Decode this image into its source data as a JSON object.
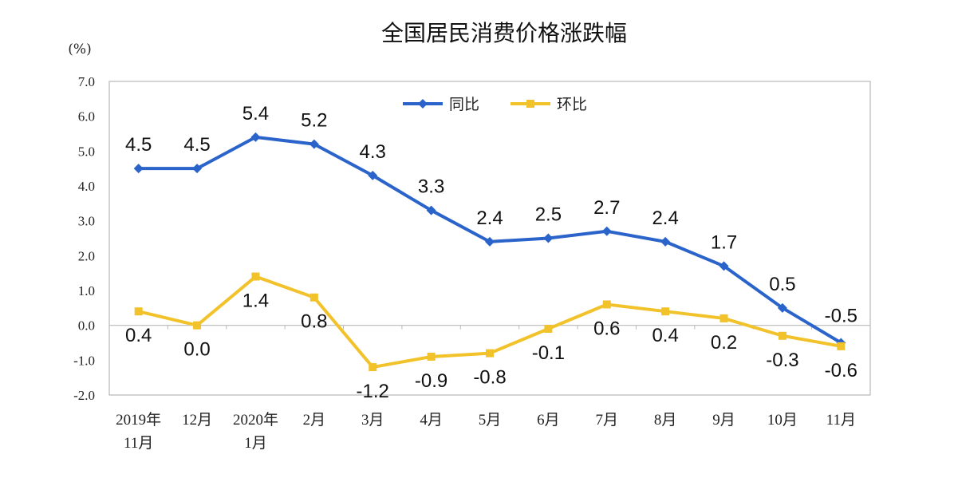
{
  "chart_data": {
    "type": "line",
    "title": "全国居民消费价格涨跌幅",
    "unit_label": "(%)",
    "categories": [
      [
        "2019年",
        "11月"
      ],
      [
        "12月"
      ],
      [
        "2020年",
        "1月"
      ],
      [
        "2月"
      ],
      [
        "3月"
      ],
      [
        "4月"
      ],
      [
        "5月"
      ],
      [
        "6月"
      ],
      [
        "7月"
      ],
      [
        "8月"
      ],
      [
        "9月"
      ],
      [
        "10月"
      ],
      [
        "11月"
      ]
    ],
    "ylim": [
      -2.0,
      7.0
    ],
    "yticks": [
      "7.0",
      "6.0",
      "5.0",
      "4.0",
      "3.0",
      "2.0",
      "1.0",
      "0.0",
      "-1.0",
      "-2.0"
    ],
    "legend_position": "top-center",
    "series": [
      {
        "name": "同比",
        "color": "#2a63c9",
        "marker": "diamond",
        "values": [
          4.5,
          4.5,
          5.4,
          5.2,
          4.3,
          3.3,
          2.4,
          2.5,
          2.7,
          2.4,
          1.7,
          0.5,
          -0.5
        ],
        "labels": [
          "4.5",
          "4.5",
          "5.4",
          "5.2",
          "4.3",
          "3.3",
          "2.4",
          "2.5",
          "2.7",
          "2.4",
          "1.7",
          "0.5",
          "-0.5"
        ]
      },
      {
        "name": "环比",
        "color": "#f2c22b",
        "marker": "square",
        "values": [
          0.4,
          0.0,
          1.4,
          0.8,
          -1.2,
          -0.9,
          -0.8,
          -0.1,
          0.6,
          0.4,
          0.2,
          -0.3,
          -0.6
        ],
        "labels": [
          "0.4",
          "0.0",
          "1.4",
          "0.8",
          "-1.2",
          "-0.9",
          "-0.8",
          "-0.1",
          "0.6",
          "0.4",
          "0.2",
          "-0.3",
          "-0.6"
        ]
      }
    ]
  }
}
